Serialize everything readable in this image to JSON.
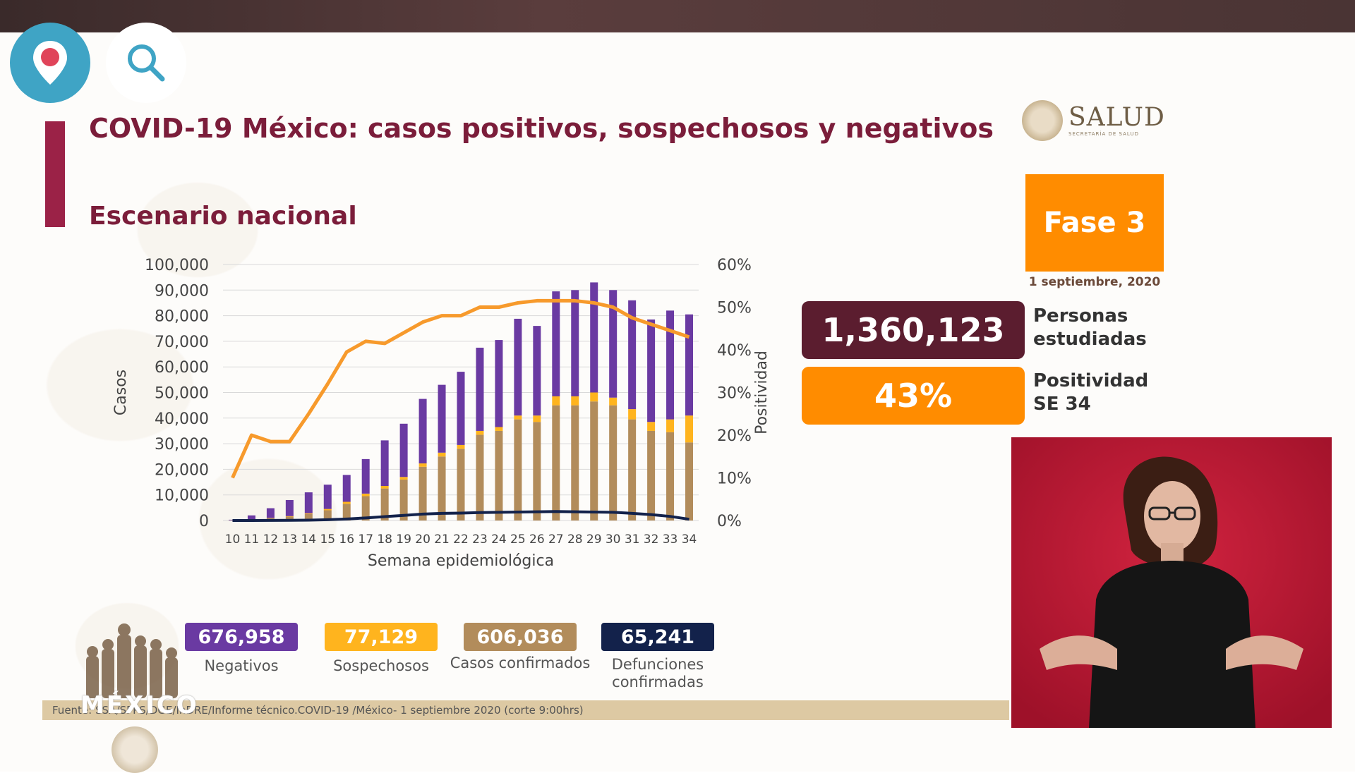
{
  "slide": {
    "title": "COVID-19 México: casos positivos, sospechosos y negativos",
    "subtitle": "Escenario nacional"
  },
  "logos": {
    "salud_name": "SALUD",
    "salud_sub": "SECRETARÍA DE SALUD",
    "gob_text": "MÉXICO"
  },
  "fase": {
    "label": "Fase 3",
    "date": "1 septiembre, 2020"
  },
  "stats": {
    "personas_value": "1,360,123",
    "personas_label": "Personas estudiadas",
    "positividad_value": "43%",
    "positividad_label": "Positividad SE 34"
  },
  "legend": [
    {
      "value": "676,958",
      "label": "Negativos",
      "color": "#6a3aa2"
    },
    {
      "value": "77,129",
      "label": "Sospechosos",
      "color": "#ffb41e"
    },
    {
      "value": "606,036",
      "label": "Casos confirmados",
      "color": "#b28c5b"
    },
    {
      "value": "65,241",
      "label": "Defunciones confirmadas",
      "color": "#13224b"
    }
  ],
  "footer": {
    "source": "Fuente: SSA/SPPS/DGE/InDRE/Informe técnico.COVID-19 /México- 1 septiembre 2020 (corte 9:00hrs)"
  },
  "chart_data": {
    "type": "bar",
    "xlabel": "Semana epidemiológica",
    "ylabel": "Casos",
    "y2label": "Positividad",
    "ylim": [
      0,
      100000
    ],
    "y2lim": [
      0,
      60
    ],
    "yticks": [
      "0",
      "10,000",
      "20,000",
      "30,000",
      "40,000",
      "50,000",
      "60,000",
      "70,000",
      "80,000",
      "90,000",
      "100,000"
    ],
    "y2ticks": [
      "0%",
      "10%",
      "20%",
      "30%",
      "40%",
      "50%",
      "60%"
    ],
    "categories": [
      "10",
      "11",
      "12",
      "13",
      "14",
      "15",
      "16",
      "17",
      "18",
      "19",
      "20",
      "21",
      "22",
      "23",
      "24",
      "25",
      "26",
      "27",
      "28",
      "29",
      "30",
      "31",
      "32",
      "33",
      "34"
    ],
    "series": [
      {
        "name": "Casos confirmados",
        "kind": "bar",
        "color": "#b28c5b",
        "values": [
          100,
          400,
          900,
          1500,
          2500,
          4000,
          6500,
          9500,
          12500,
          16000,
          21000,
          25000,
          28000,
          33500,
          35000,
          39500,
          38500,
          45000,
          45000,
          46500,
          45000,
          39500,
          35000,
          34500,
          30500
        ]
      },
      {
        "name": "Sospechosos",
        "kind": "bar",
        "color": "#ffb41e",
        "values": [
          0,
          0,
          100,
          200,
          300,
          500,
          800,
          1000,
          1000,
          1000,
          1300,
          1500,
          1500,
          1500,
          1500,
          1500,
          2500,
          3500,
          3500,
          3500,
          3000,
          4000,
          3500,
          5000,
          10500
        ]
      },
      {
        "name": "Negativos",
        "kind": "bar",
        "color": "#6a3aa2",
        "values": [
          200,
          1600,
          3800,
          6300,
          8200,
          9500,
          10500,
          13500,
          17800,
          20800,
          25200,
          26500,
          28600,
          32500,
          34000,
          37800,
          35000,
          41000,
          41500,
          43000,
          42000,
          42500,
          40000,
          42500,
          39500
        ]
      },
      {
        "name": "Defunciones confirmadas",
        "kind": "line",
        "color": "#13224b",
        "values": [
          0,
          10,
          30,
          60,
          150,
          300,
          600,
          1000,
          1500,
          2000,
          2500,
          2800,
          2900,
          3100,
          3200,
          3300,
          3400,
          3500,
          3400,
          3300,
          3200,
          2800,
          2300,
          1600,
          500
        ]
      },
      {
        "name": "Positividad",
        "kind": "line",
        "axis": "y2",
        "color": "#f79a2c",
        "values": [
          10,
          20,
          18.5,
          18.5,
          25,
          32,
          39.5,
          42,
          41.5,
          44,
          46.5,
          48,
          48,
          50,
          50,
          51,
          51.5,
          51.5,
          51.5,
          51,
          50,
          47.5,
          46,
          44.5,
          43
        ]
      }
    ]
  }
}
